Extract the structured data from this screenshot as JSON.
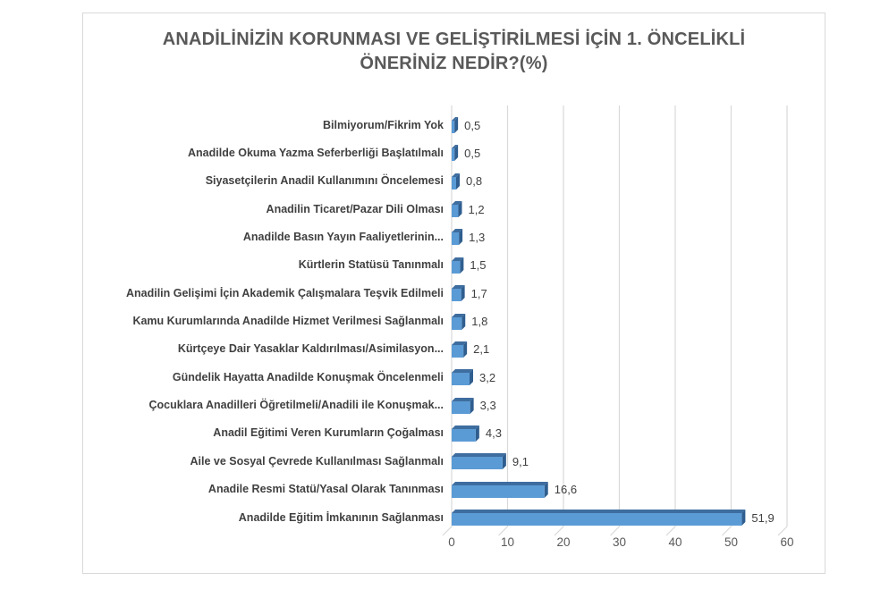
{
  "chart_data": {
    "type": "bar",
    "orientation": "horizontal",
    "style": "3d",
    "title": "ANADİLİNİZİN KORUNMASI VE GELİŞTİRİLMESİ İÇİN 1. ÖNCELİKLİ ÖNERİNİZ NEDİR?(%)",
    "categories": [
      "Bilmiyorum/Fikrim Yok",
      "Anadilde Okuma Yazma Seferberliği Başlatılmalı",
      "Siyasetçilerin Anadil Kullanımını Öncelemesi",
      "Anadilin Ticaret/Pazar Dili Olması",
      "Anadilde Basın Yayın Faaliyetlerinin...",
      "Kürtlerin Statüsü Tanınmalı",
      "Anadilin Gelişimi İçin Akademik Çalışmalara Teşvik Edilmeli",
      "Kamu Kurumlarında Anadilde Hizmet Verilmesi Sağlanmalı",
      "Kürtçeye Dair Yasaklar Kaldırılması/Asimilasyon...",
      "Gündelik Hayatta Anadilde Konuşmak Öncelenmeli",
      "Çocuklara Anadilleri Öğretilmeli/Anadili ile Konuşmak...",
      "Anadil Eğitimi Veren Kurumların Çoğalması",
      "Aile ve Sosyal Çevrede Kullanılması Sağlanmalı",
      "Anadile Resmi Statü/Yasal Olarak Tanınması",
      "Anadilde Eğitim İmkanının Sağlanması"
    ],
    "values": [
      0.5,
      0.5,
      0.8,
      1.2,
      1.3,
      1.5,
      1.7,
      1.8,
      2.1,
      3.2,
      3.3,
      4.3,
      9.1,
      16.6,
      51.9
    ],
    "value_labels": [
      "0,5",
      "0,5",
      "0,8",
      "1,2",
      "1,3",
      "1,5",
      "1,7",
      "1,8",
      "2,1",
      "3,2",
      "3,3",
      "4,3",
      "9,1",
      "16,6",
      "51,9"
    ],
    "x_ticks": [
      "0",
      "10",
      "20",
      "30",
      "40",
      "50",
      "60"
    ],
    "xlim": [
      0,
      60
    ],
    "xlabel": "",
    "ylabel": "",
    "grid": true,
    "legend": false,
    "value_label_format": "decimal-comma",
    "colors": {
      "bar_front": "#5B9BD5",
      "bar_top": "#3E6D9F",
      "bar_side": "#2F5E8F",
      "gridline": "#D9D9D9",
      "border": "#D9D9D9",
      "title_text": "#595959",
      "category_text": "#404040",
      "value_text": "#404040",
      "tick_text": "#595959"
    }
  }
}
